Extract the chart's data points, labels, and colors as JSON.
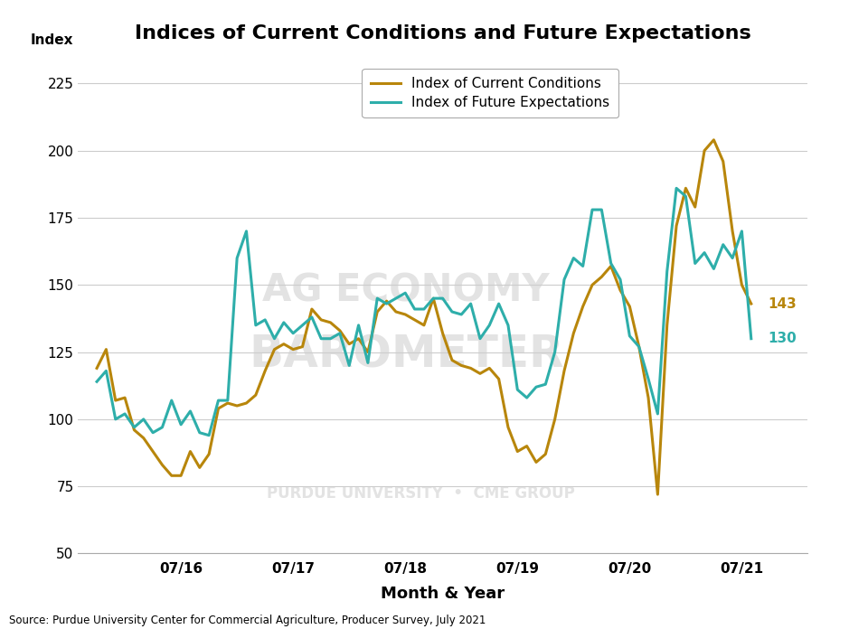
{
  "title": "Indices of Current Conditions and Future Expectations",
  "xlabel": "Month & Year",
  "ylabel": "Index",
  "source": "Source: Purdue University Center for Commercial Agriculture, Producer Survey, July 2021",
  "ylim": [
    50,
    235
  ],
  "yticks": [
    50,
    75,
    100,
    125,
    150,
    175,
    200,
    225
  ],
  "color_current": "#B8860B",
  "color_future": "#2EAEAA",
  "label_current": "Index of Current Conditions",
  "label_future": "Index of Future Expectations",
  "end_label_current": "143",
  "end_label_future": "130",
  "current_conditions": [
    119,
    126,
    107,
    108,
    96,
    93,
    88,
    83,
    79,
    79,
    88,
    82,
    87,
    104,
    106,
    105,
    106,
    109,
    118,
    126,
    128,
    126,
    127,
    141,
    137,
    136,
    133,
    128,
    130,
    125,
    140,
    144,
    140,
    139,
    137,
    135,
    145,
    132,
    122,
    120,
    119,
    117,
    119,
    115,
    97,
    88,
    90,
    84,
    87,
    100,
    118,
    132,
    142,
    150,
    153,
    157,
    148,
    142,
    127,
    108,
    72,
    135,
    172,
    186,
    179,
    200,
    204,
    196,
    170,
    150,
    143
  ],
  "future_expectations": [
    114,
    118,
    100,
    102,
    97,
    100,
    95,
    97,
    107,
    98,
    103,
    95,
    94,
    107,
    107,
    160,
    170,
    135,
    137,
    130,
    136,
    132,
    135,
    138,
    130,
    130,
    132,
    120,
    135,
    121,
    145,
    143,
    145,
    147,
    141,
    141,
    145,
    145,
    140,
    139,
    143,
    130,
    135,
    143,
    135,
    111,
    108,
    112,
    113,
    125,
    152,
    160,
    157,
    178,
    178,
    158,
    152,
    131,
    127,
    115,
    102,
    155,
    186,
    183,
    158,
    162,
    156,
    165,
    160,
    170,
    130
  ],
  "background_color": "#FFFFFF",
  "grid_color": "#CCCCCC"
}
